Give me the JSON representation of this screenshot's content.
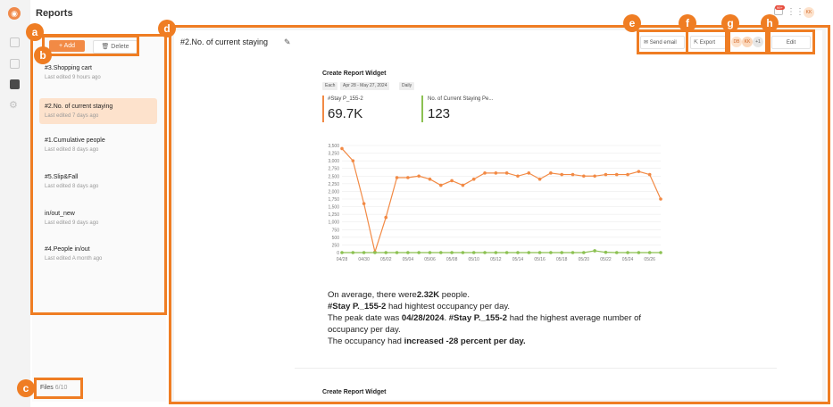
{
  "app": {
    "title": "Reports"
  },
  "toolbar": {
    "add_label": "+ Add",
    "delete_label": "Delete"
  },
  "files_panel": {
    "items": [
      {
        "title": "#3.Shopping cart",
        "subtitle": "Last edited 9 hours ago",
        "selected": false
      },
      {
        "title": "#2.No. of current staying",
        "subtitle": "Last edited 7 days ago",
        "selected": true
      },
      {
        "title": "#1.Cumulative people",
        "subtitle": "Last edited 8 days ago",
        "selected": false
      },
      {
        "title": "#5.Slip&Fall",
        "subtitle": "Last edited 8 days ago",
        "selected": false
      },
      {
        "title": "in/out_new",
        "subtitle": "Last edited 9 days ago",
        "selected": false
      },
      {
        "title": "#4.People in/out",
        "subtitle": "Last edited A month ago",
        "selected": false
      }
    ],
    "files_label": "Files",
    "files_count": "6/10"
  },
  "report": {
    "title": "#2.No. of current staying",
    "send_email_label": "Send email",
    "export_label": "Export",
    "edit_label": "Edit",
    "avatars": [
      "DB",
      "KK",
      "+1"
    ],
    "widget_title": "Create Report Widget",
    "chips": [
      "Each",
      "Apr 28 - May 27, 2024",
      "Daily"
    ],
    "kpi": [
      {
        "name": "#Stay P_155-2",
        "value": "69.7K",
        "color": "#f28a45"
      },
      {
        "name": "No. of Current Staying Pe...",
        "value": "123",
        "color": "#8cc152"
      }
    ],
    "summary": {
      "l1a": "On average, there were",
      "l1b": "2.32K",
      "l1c": " people.",
      "l2a": "#Stay P._155-2",
      "l2b": " had hightest occupancy per day.",
      "l3a": "The peak date was ",
      "l3b": "04/28/2024",
      "l3c": ". ",
      "l3d": "#Stay P._155-2",
      "l3e": " had the highest average number of",
      "l4": "occupancy per day.",
      "l5a": "The occupancy had ",
      "l5b": "increased -28 percent per day."
    },
    "widget_title_2": "Create Report Widget"
  },
  "header_right": {
    "notif_badge": "99+",
    "user_initials": "KK"
  },
  "annotations": [
    "a",
    "b",
    "c",
    "d",
    "e",
    "f",
    "g",
    "h"
  ],
  "colors": {
    "accent": "#ef7d23",
    "series1": "#f28a45",
    "series2": "#8cc152"
  },
  "chart_data": {
    "type": "line",
    "x": [
      "04/28",
      "04/29",
      "04/30",
      "05/01",
      "05/02",
      "05/03",
      "05/04",
      "05/05",
      "05/06",
      "05/07",
      "05/08",
      "05/09",
      "05/10",
      "05/11",
      "05/12",
      "05/13",
      "05/14",
      "05/15",
      "05/16",
      "05/17",
      "05/18",
      "05/19",
      "05/20",
      "05/21",
      "05/22",
      "05/23",
      "05/24",
      "05/25",
      "05/26",
      "05/27"
    ],
    "x_tick_labels": [
      "04/28",
      "04/30",
      "05/02",
      "05/04",
      "05/06",
      "05/08",
      "05/10",
      "05/12",
      "05/14",
      "05/16",
      "05/18",
      "05/20",
      "05/22",
      "05/24",
      "05/26"
    ],
    "series": [
      {
        "name": "#Stay P_155-2",
        "color": "#f28a45",
        "values": [
          3400,
          3000,
          1600,
          20,
          1150,
          2450,
          2450,
          2500,
          2400,
          2200,
          2350,
          2200,
          2400,
          2600,
          2600,
          2600,
          2500,
          2600,
          2400,
          2600,
          2550,
          2550,
          2500,
          2500,
          2550,
          2550,
          2550,
          2650,
          2550,
          1750
        ]
      },
      {
        "name": "No. of Current Staying Pe...",
        "color": "#8cc152",
        "values": [
          0,
          0,
          0,
          0,
          0,
          0,
          0,
          0,
          0,
          0,
          0,
          0,
          0,
          0,
          0,
          0,
          0,
          0,
          0,
          0,
          0,
          0,
          0,
          60,
          10,
          0,
          0,
          0,
          0,
          0
        ]
      }
    ],
    "yticks": [
      0,
      250,
      500,
      750,
      1000,
      1250,
      1500,
      1750,
      2000,
      2250,
      2500,
      2750,
      3000,
      3250,
      3500
    ],
    "ylim": [
      0,
      3500
    ],
    "grid": true
  }
}
